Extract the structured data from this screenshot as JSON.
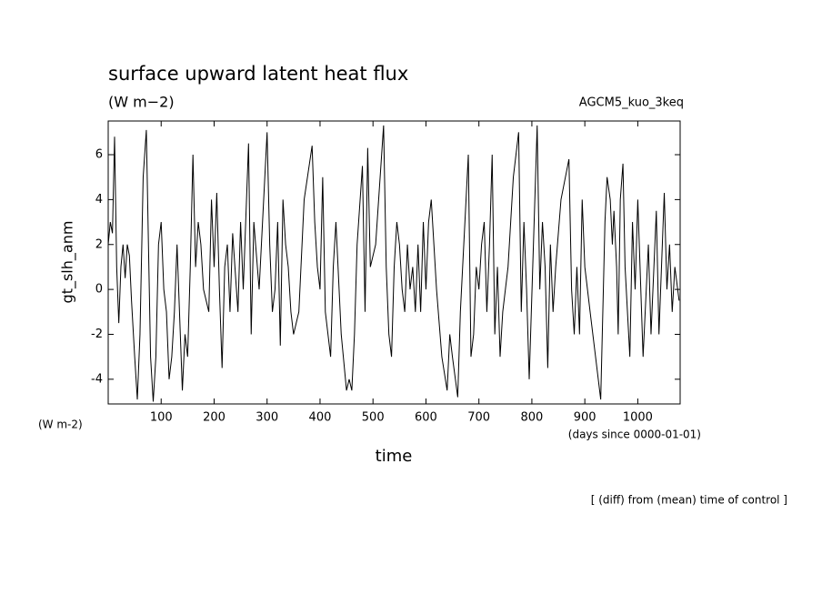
{
  "chart_data": {
    "type": "line",
    "title": "surface upward latent heat flux",
    "subtitle": "(W m−2)",
    "experiment": "AGCM5_kuo_3keq",
    "y_label": "gt_slh_anm",
    "y_unit": "(W m-2)",
    "x_label": "time",
    "x_unit": "(days since 0000-01-01)",
    "footnote": "[ (diff) from (mean) time of control ]",
    "color": "#000000",
    "x": [
      0,
      4,
      8,
      12,
      16,
      20,
      24,
      28,
      32,
      36,
      40,
      44,
      50,
      55,
      60,
      66,
      72,
      76,
      80,
      85,
      90,
      95,
      100,
      105,
      110,
      115,
      120,
      125,
      130,
      140,
      145,
      150,
      155,
      160,
      165,
      170,
      175,
      180,
      190,
      195,
      200,
      205,
      210,
      215,
      220,
      225,
      230,
      235,
      245,
      250,
      255,
      265,
      270,
      275,
      285,
      300,
      305,
      310,
      315,
      320,
      325,
      330,
      335,
      340,
      345,
      350,
      360,
      370,
      385,
      390,
      395,
      400,
      405,
      410,
      420,
      425,
      430,
      440,
      450,
      455,
      460,
      465,
      470,
      480,
      485,
      490,
      495,
      505,
      520,
      525,
      530,
      535,
      540,
      545,
      550,
      555,
      560,
      565,
      570,
      575,
      580,
      585,
      590,
      595,
      600,
      605,
      610,
      615,
      620,
      630,
      640,
      645,
      650,
      660,
      665,
      680,
      685,
      690,
      695,
      700,
      705,
      710,
      715,
      720,
      725,
      730,
      735,
      740,
      745,
      750,
      755,
      760,
      765,
      775,
      780,
      785,
      790,
      795,
      810,
      815,
      820,
      825,
      830,
      835,
      840,
      845,
      855,
      870,
      875,
      880,
      885,
      890,
      895,
      900,
      910,
      930,
      935,
      938,
      942,
      948,
      952,
      955,
      960,
      963,
      967,
      972,
      976,
      985,
      990,
      995,
      1000,
      1010,
      1020,
      1025,
      1035,
      1040,
      1050,
      1055,
      1060,
      1065,
      1070,
      1078
    ],
    "values": [
      2,
      3,
      2.5,
      6.8,
      1,
      -1.5,
      1,
      2,
      0.5,
      2,
      1.5,
      -0.5,
      -3,
      -4.9,
      -2,
      5,
      7.1,
      2,
      -3,
      -5,
      -3,
      2,
      3,
      0,
      -1,
      -4,
      -3,
      -1,
      2,
      -4.5,
      -2,
      -3,
      1,
      6,
      1,
      3,
      2,
      0,
      -1,
      4,
      1,
      4.3,
      0,
      -3.5,
      1,
      2,
      -1,
      2.5,
      -1,
      3,
      0,
      6.5,
      -2,
      3,
      0,
      7,
      2,
      -1,
      0,
      3,
      -2.5,
      4,
      2,
      1,
      -1,
      -2,
      -1,
      4,
      6.4,
      3,
      1,
      0,
      5,
      -1,
      -3,
      1,
      3,
      -2,
      -4.5,
      -4,
      -4.5,
      -2,
      2,
      5.5,
      -1,
      6.3,
      1,
      2,
      7.3,
      1,
      -2,
      -3,
      1,
      3,
      2,
      0,
      -1,
      2,
      0,
      1,
      -1,
      2,
      -1,
      3,
      0,
      3,
      4,
      2,
      0,
      -3,
      -4.5,
      -2,
      -3,
      -4.8,
      -1,
      6,
      -3,
      -2,
      1,
      0,
      2,
      3,
      -1,
      2,
      6,
      -2,
      1,
      -3,
      -1,
      0,
      1,
      3,
      5,
      7,
      -1,
      3,
      0,
      -4,
      7.3,
      0,
      3,
      1,
      -3.5,
      2,
      -1,
      1,
      4,
      5.8,
      0,
      -2,
      1,
      -2,
      4,
      1,
      -1,
      -4.9,
      0,
      3,
      5,
      4,
      2,
      3.5,
      1,
      -2,
      4,
      5.6,
      1,
      -3,
      3,
      0,
      4,
      -3,
      2,
      -2,
      3.5,
      -2,
      4.3,
      0,
      2,
      -1,
      1,
      -0.5
    ],
    "xlim": [
      0,
      1080
    ],
    "xticks": [
      100,
      200,
      300,
      400,
      500,
      600,
      700,
      800,
      900,
      1000
    ],
    "ylim": [
      -5.1,
      7.5
    ],
    "yticks": [
      -4,
      -2,
      0,
      2,
      4,
      6
    ]
  }
}
